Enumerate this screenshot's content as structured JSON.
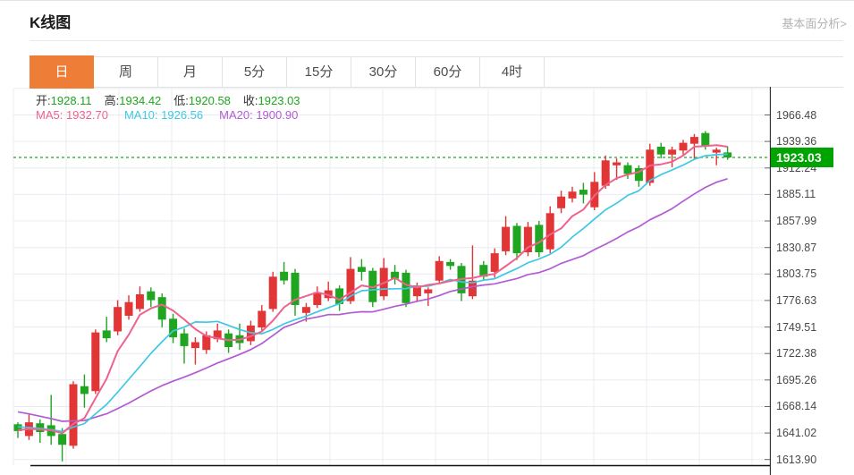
{
  "header": {
    "title": "K线图",
    "link": "基本面分析>"
  },
  "tabs": {
    "items": [
      {
        "key": "day",
        "label": "日",
        "active": true
      },
      {
        "key": "week",
        "label": "周",
        "active": false
      },
      {
        "key": "month",
        "label": "月",
        "active": false
      },
      {
        "key": "5min",
        "label": "5分",
        "active": false
      },
      {
        "key": "15min",
        "label": "15分",
        "active": false
      },
      {
        "key": "30min",
        "label": "30分",
        "active": false
      },
      {
        "key": "60min",
        "label": "60分",
        "active": false
      },
      {
        "key": "4hour",
        "label": "4时",
        "active": false
      }
    ]
  },
  "ohlc_legend": [
    {
      "key": "open",
      "label": "开:",
      "value": "1928.11"
    },
    {
      "key": "high",
      "label": "高:",
      "value": "1934.42"
    },
    {
      "key": "low",
      "label": "低:",
      "value": "1920.58"
    },
    {
      "key": "close",
      "label": "收:",
      "value": "1923.03"
    }
  ],
  "ma_legend": [
    {
      "key": "ma5",
      "label": "MA5:",
      "value": "1932.70",
      "color": "#f0628e"
    },
    {
      "key": "ma10",
      "label": "MA10:",
      "value": "1926.56",
      "color": "#3fc8e4"
    },
    {
      "key": "ma20",
      "label": "MA20:",
      "value": "1900.90",
      "color": "#b35bd2"
    }
  ],
  "axis": {
    "labels": [
      "1966.48",
      "1939.36",
      "1912.24",
      "1885.11",
      "1857.99",
      "1830.87",
      "1803.75",
      "1776.63",
      "1749.51",
      "1722.38",
      "1695.26",
      "1668.14",
      "1641.02",
      "1613.90"
    ],
    "badge_text": "1923.03"
  },
  "colors": {
    "accent": "#ee7e37",
    "up": "#e23535",
    "down": "#1fa51f",
    "badge_bg": "#00a400",
    "current_line": "#23a323",
    "ma5": "#f0628e",
    "ma10": "#3fc8e4",
    "ma20": "#b35bd2",
    "grid": "#e8ecf2",
    "axis_line": "#333333",
    "tick": "#666666"
  },
  "chart_data": {
    "type": "candlestick",
    "title": "K线图",
    "current_price": 1923.03,
    "price_step": 27.12,
    "axis_ticks": [
      1966.48,
      1939.36,
      1912.24,
      1885.11,
      1857.99,
      1830.87,
      1803.75,
      1776.63,
      1749.51,
      1722.38,
      1695.26,
      1668.14,
      1641.02,
      1613.9
    ],
    "ma_periods": [
      5,
      10,
      20
    ],
    "ma_seed": [
      1696,
      1693,
      1690,
      1687,
      1684,
      1681,
      1677,
      1673,
      1669,
      1665,
      1661,
      1657,
      1653,
      1650,
      1648,
      1646,
      1645,
      1644,
      1643,
      1644
    ],
    "candles": [
      [
        1650,
        1652,
        1636,
        1643
      ],
      [
        1638,
        1661,
        1634,
        1652
      ],
      [
        1651,
        1655,
        1631,
        1642
      ],
      [
        1649,
        1680,
        1629,
        1638
      ],
      [
        1640,
        1646,
        1612,
        1629
      ],
      [
        1628,
        1694,
        1625,
        1691
      ],
      [
        1689,
        1701,
        1667,
        1681
      ],
      [
        1684,
        1747,
        1681,
        1744
      ],
      [
        1746,
        1760,
        1734,
        1738
      ],
      [
        1745,
        1777,
        1741,
        1770
      ],
      [
        1761,
        1782,
        1757,
        1775
      ],
      [
        1768,
        1791,
        1765,
        1783
      ],
      [
        1786,
        1790,
        1770,
        1777
      ],
      [
        1780,
        1784,
        1749,
        1757
      ],
      [
        1758,
        1763,
        1733,
        1739
      ],
      [
        1743,
        1748,
        1712,
        1730
      ],
      [
        1728,
        1739,
        1711,
        1734
      ],
      [
        1726,
        1745,
        1722,
        1741
      ],
      [
        1737,
        1753,
        1734,
        1746
      ],
      [
        1743,
        1747,
        1723,
        1729
      ],
      [
        1741,
        1753,
        1726,
        1733
      ],
      [
        1735,
        1756,
        1731,
        1751
      ],
      [
        1749,
        1772,
        1746,
        1766
      ],
      [
        1768,
        1806,
        1765,
        1801
      ],
      [
        1806,
        1816,
        1793,
        1797
      ],
      [
        1805,
        1809,
        1761,
        1772
      ],
      [
        1764,
        1774,
        1755,
        1770
      ],
      [
        1772,
        1791,
        1769,
        1785
      ],
      [
        1779,
        1796,
        1776,
        1787
      ],
      [
        1789,
        1792,
        1766,
        1773
      ],
      [
        1776,
        1821,
        1773,
        1809
      ],
      [
        1811,
        1819,
        1797,
        1806
      ],
      [
        1807,
        1810,
        1770,
        1775
      ],
      [
        1781,
        1820,
        1777,
        1810
      ],
      [
        1806,
        1813,
        1793,
        1799
      ],
      [
        1805,
        1808,
        1770,
        1774
      ],
      [
        1781,
        1795,
        1775,
        1792
      ],
      [
        1784,
        1790,
        1771,
        1788
      ],
      [
        1797,
        1822,
        1794,
        1817
      ],
      [
        1816,
        1819,
        1808,
        1812
      ],
      [
        1812,
        1815,
        1776,
        1784
      ],
      [
        1781,
        1833,
        1778,
        1797
      ],
      [
        1813,
        1817,
        1798,
        1801
      ],
      [
        1806,
        1830,
        1800,
        1825
      ],
      [
        1827,
        1863,
        1823,
        1852
      ],
      [
        1853,
        1856,
        1818,
        1825
      ],
      [
        1826,
        1857,
        1822,
        1852
      ],
      [
        1854,
        1858,
        1821,
        1826
      ],
      [
        1829,
        1873,
        1825,
        1866
      ],
      [
        1871,
        1889,
        1866,
        1883
      ],
      [
        1881,
        1893,
        1877,
        1888
      ],
      [
        1890,
        1897,
        1876,
        1885
      ],
      [
        1872,
        1908,
        1869,
        1898
      ],
      [
        1894,
        1925,
        1891,
        1920
      ],
      [
        1915,
        1922,
        1900,
        1918
      ],
      [
        1915,
        1918,
        1901,
        1906
      ],
      [
        1912,
        1915,
        1893,
        1899
      ],
      [
        1897,
        1937,
        1894,
        1931
      ],
      [
        1934,
        1938,
        1922,
        1926
      ],
      [
        1926,
        1934,
        1913,
        1931
      ],
      [
        1930,
        1941,
        1926,
        1938
      ],
      [
        1937,
        1947,
        1921,
        1944
      ],
      [
        1948,
        1950,
        1931,
        1934
      ],
      [
        1928,
        1933,
        1915,
        1931
      ],
      [
        1928.11,
        1934.42,
        1920.58,
        1923.03
      ]
    ]
  }
}
